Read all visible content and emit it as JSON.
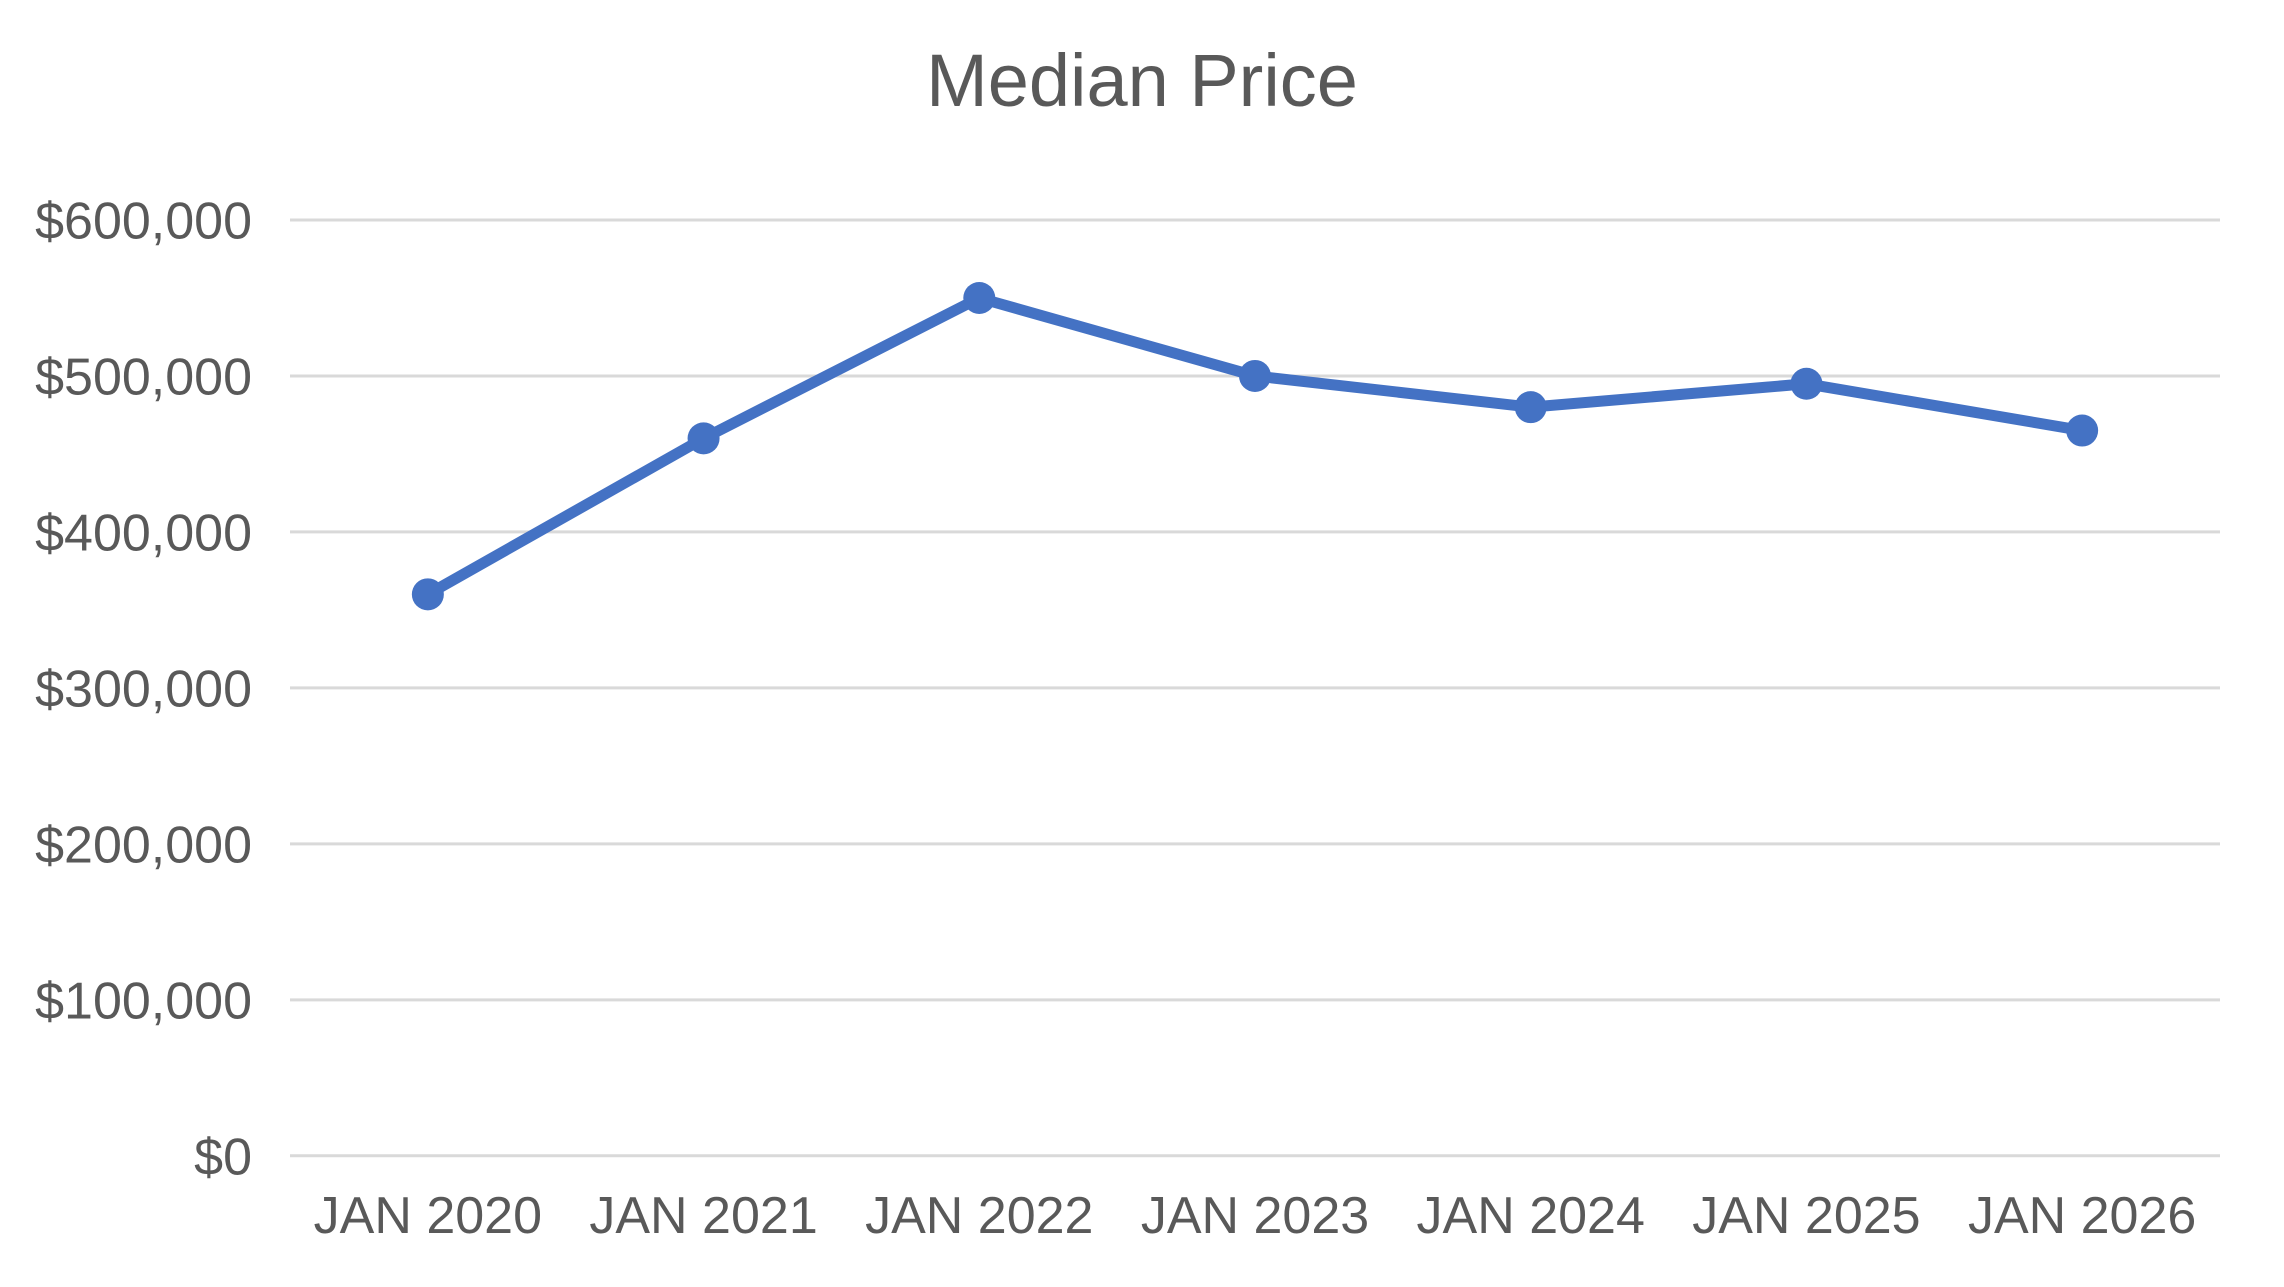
{
  "chart_data": {
    "type": "line",
    "title": "Median Price",
    "categories": [
      "JAN 2020",
      "JAN 2021",
      "JAN 2022",
      "JAN 2023",
      "JAN 2024",
      "JAN 2025",
      "JAN 2026"
    ],
    "series": [
      {
        "name": "Median Price",
        "values": [
          360000,
          460000,
          550000,
          500000,
          480000,
          495000,
          465000
        ]
      }
    ],
    "xlabel": "",
    "ylabel": "",
    "ylim": [
      0,
      600000
    ],
    "y_ticks": [
      {
        "value": 0,
        "label": "$0"
      },
      {
        "value": 100000,
        "label": "$100,000"
      },
      {
        "value": 200000,
        "label": "$200,000"
      },
      {
        "value": 300000,
        "label": "$300,000"
      },
      {
        "value": 400000,
        "label": "$400,000"
      },
      {
        "value": 500000,
        "label": "$500,000"
      },
      {
        "value": 600000,
        "label": "$600,000"
      }
    ],
    "grid": true,
    "legend": "none",
    "colors": {
      "line": "#4472C4",
      "marker": "#4472C4",
      "gridline": "#D9D9D9",
      "text": "#595959",
      "background": "#FFFFFF"
    }
  }
}
